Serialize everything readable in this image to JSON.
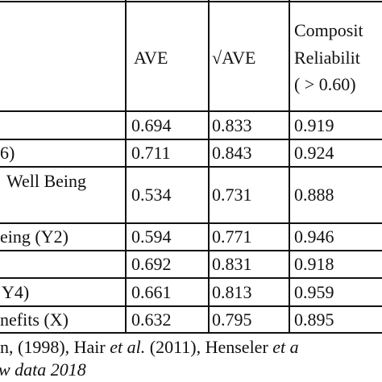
{
  "table": {
    "headers": [
      "AVE",
      "√AVE",
      [
        "Composit",
        "Reliabilit",
        "( > 0.60)"
      ]
    ],
    "rows": [
      {
        "values": [
          "0.694",
          "0.833",
          "0.919"
        ]
      },
      {
        "label": "6)",
        "values": [
          "0.711",
          "0.843",
          "0.924"
        ]
      },
      {
        "label": "Well  Being",
        "values": [
          "0.534",
          "0.731",
          "0.888"
        ]
      },
      {
        "label": "eing (Y2)",
        "values": [
          "0.594",
          "0.771",
          "0.946"
        ]
      },
      {
        "values": [
          "0.692",
          "0.831",
          "0.918"
        ]
      },
      {
        "label": "Y4)",
        "values": [
          "0.661",
          "0.813",
          "0.959"
        ]
      },
      {
        "label": "nefits (X)",
        "values": [
          "0.632",
          "0.795",
          "0.895"
        ]
      }
    ]
  },
  "footer": {
    "line1": [
      "n, (1998), Hair ",
      "et al.",
      " (2011), Henseler ",
      "et a"
    ],
    "line2": "w data 2018"
  }
}
